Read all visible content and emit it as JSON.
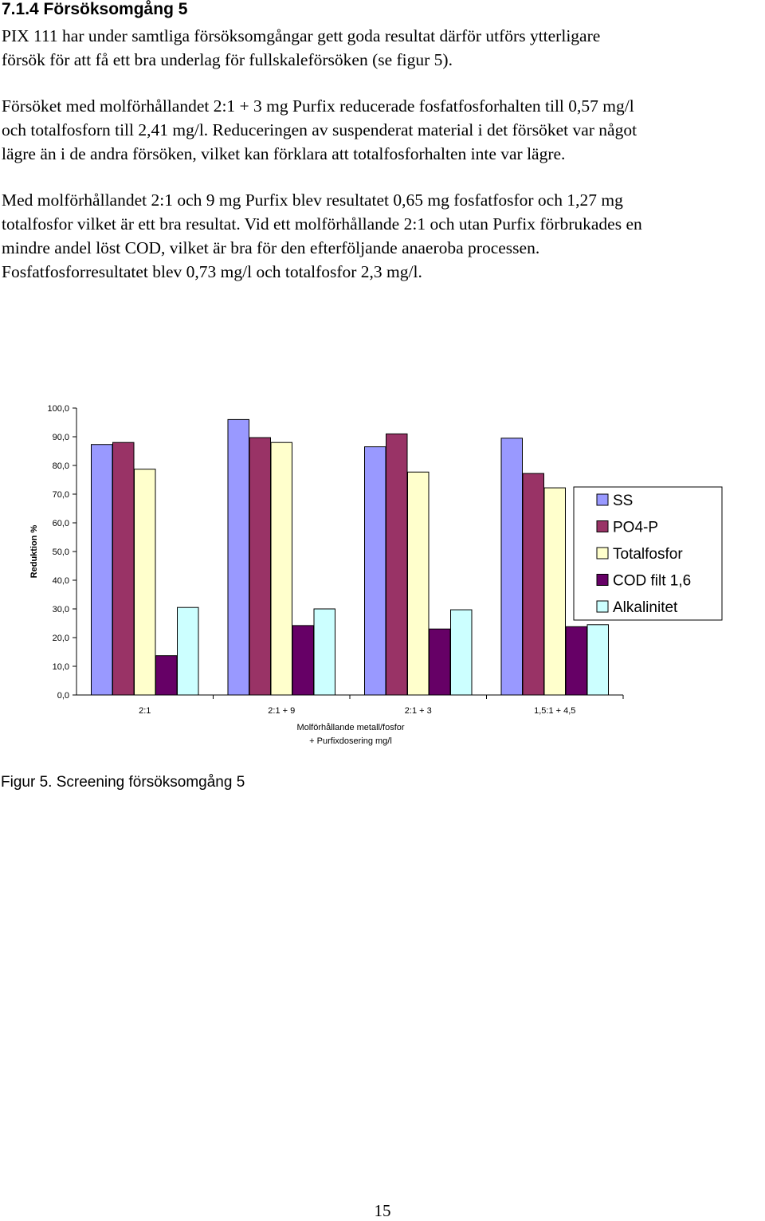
{
  "section_heading": "7.1.4 Försöksomgång 5",
  "paragraphs": [
    {
      "lines": [
        "PIX 111 har under samtliga försöksomgångar gett goda resultat därför utförs ytterligare",
        "försök för att få ett bra underlag för fullskaleförsöken (se figur 5)."
      ]
    },
    {
      "lines": [
        "Försöket med molförhållandet 2:1 + 3 mg Purfix reducerade fosfatfosforhalten till 0,57 mg/l",
        "och totalfosforn till 2,41 mg/l. Reduceringen av suspenderat material i det försöket var något",
        "lägre än i de andra försöken, vilket kan förklara att totalfosforhalten inte var lägre."
      ]
    },
    {
      "lines": [
        "Med molförhållandet 2:1 och 9 mg Purfix blev resultatet 0,65 mg fosfatfosfor och 1,27 mg",
        "totalfosfor vilket är ett bra resultat. Vid ett molförhållande 2:1 och utan Purfix förbrukades en",
        "mindre andel löst COD, vilket är bra för den efterföljande anaeroba processen.",
        "Fosfatfosforresultatet blev 0,73 mg/l och totalfosfor 2,3 mg/l."
      ]
    }
  ],
  "chart_data": {
    "type": "bar",
    "categories": [
      "2:1",
      "2:1 + 9",
      "2:1 + 3",
      "1,5:1 + 4,5"
    ],
    "series": [
      {
        "name": "SS",
        "color": "#9999ff",
        "values": [
          87.3,
          96.0,
          86.5,
          89.5
        ]
      },
      {
        "name": "PO4-P",
        "color": "#993366",
        "values": [
          88.0,
          89.7,
          91.0,
          77.2
        ]
      },
      {
        "name": "Totalfosfor",
        "color": "#ffffcc",
        "values": [
          78.7,
          88.0,
          77.7,
          72.2
        ]
      },
      {
        "name": "COD filt 1,6",
        "color": "#660066",
        "values": [
          13.7,
          24.2,
          23.0,
          23.8
        ]
      },
      {
        "name": "Alkalinitet",
        "color": "#ccffff",
        "values": [
          30.5,
          30.0,
          29.7,
          24.5
        ]
      }
    ],
    "ylabel": "Reduktion %",
    "xlabel_lines": [
      "Molförhållande metall/fosfor",
      "+ Purfixdosering mg/l"
    ],
    "ylim": [
      0,
      100
    ],
    "yticks": [
      "0,0",
      "10,0",
      "20,0",
      "30,0",
      "40,0",
      "50,0",
      "60,0",
      "70,0",
      "80,0",
      "90,0",
      "100,0"
    ],
    "grid": false,
    "legend_position": "right"
  },
  "caption": "Figur 5. Screening försöksomgång 5",
  "page_number": "15"
}
